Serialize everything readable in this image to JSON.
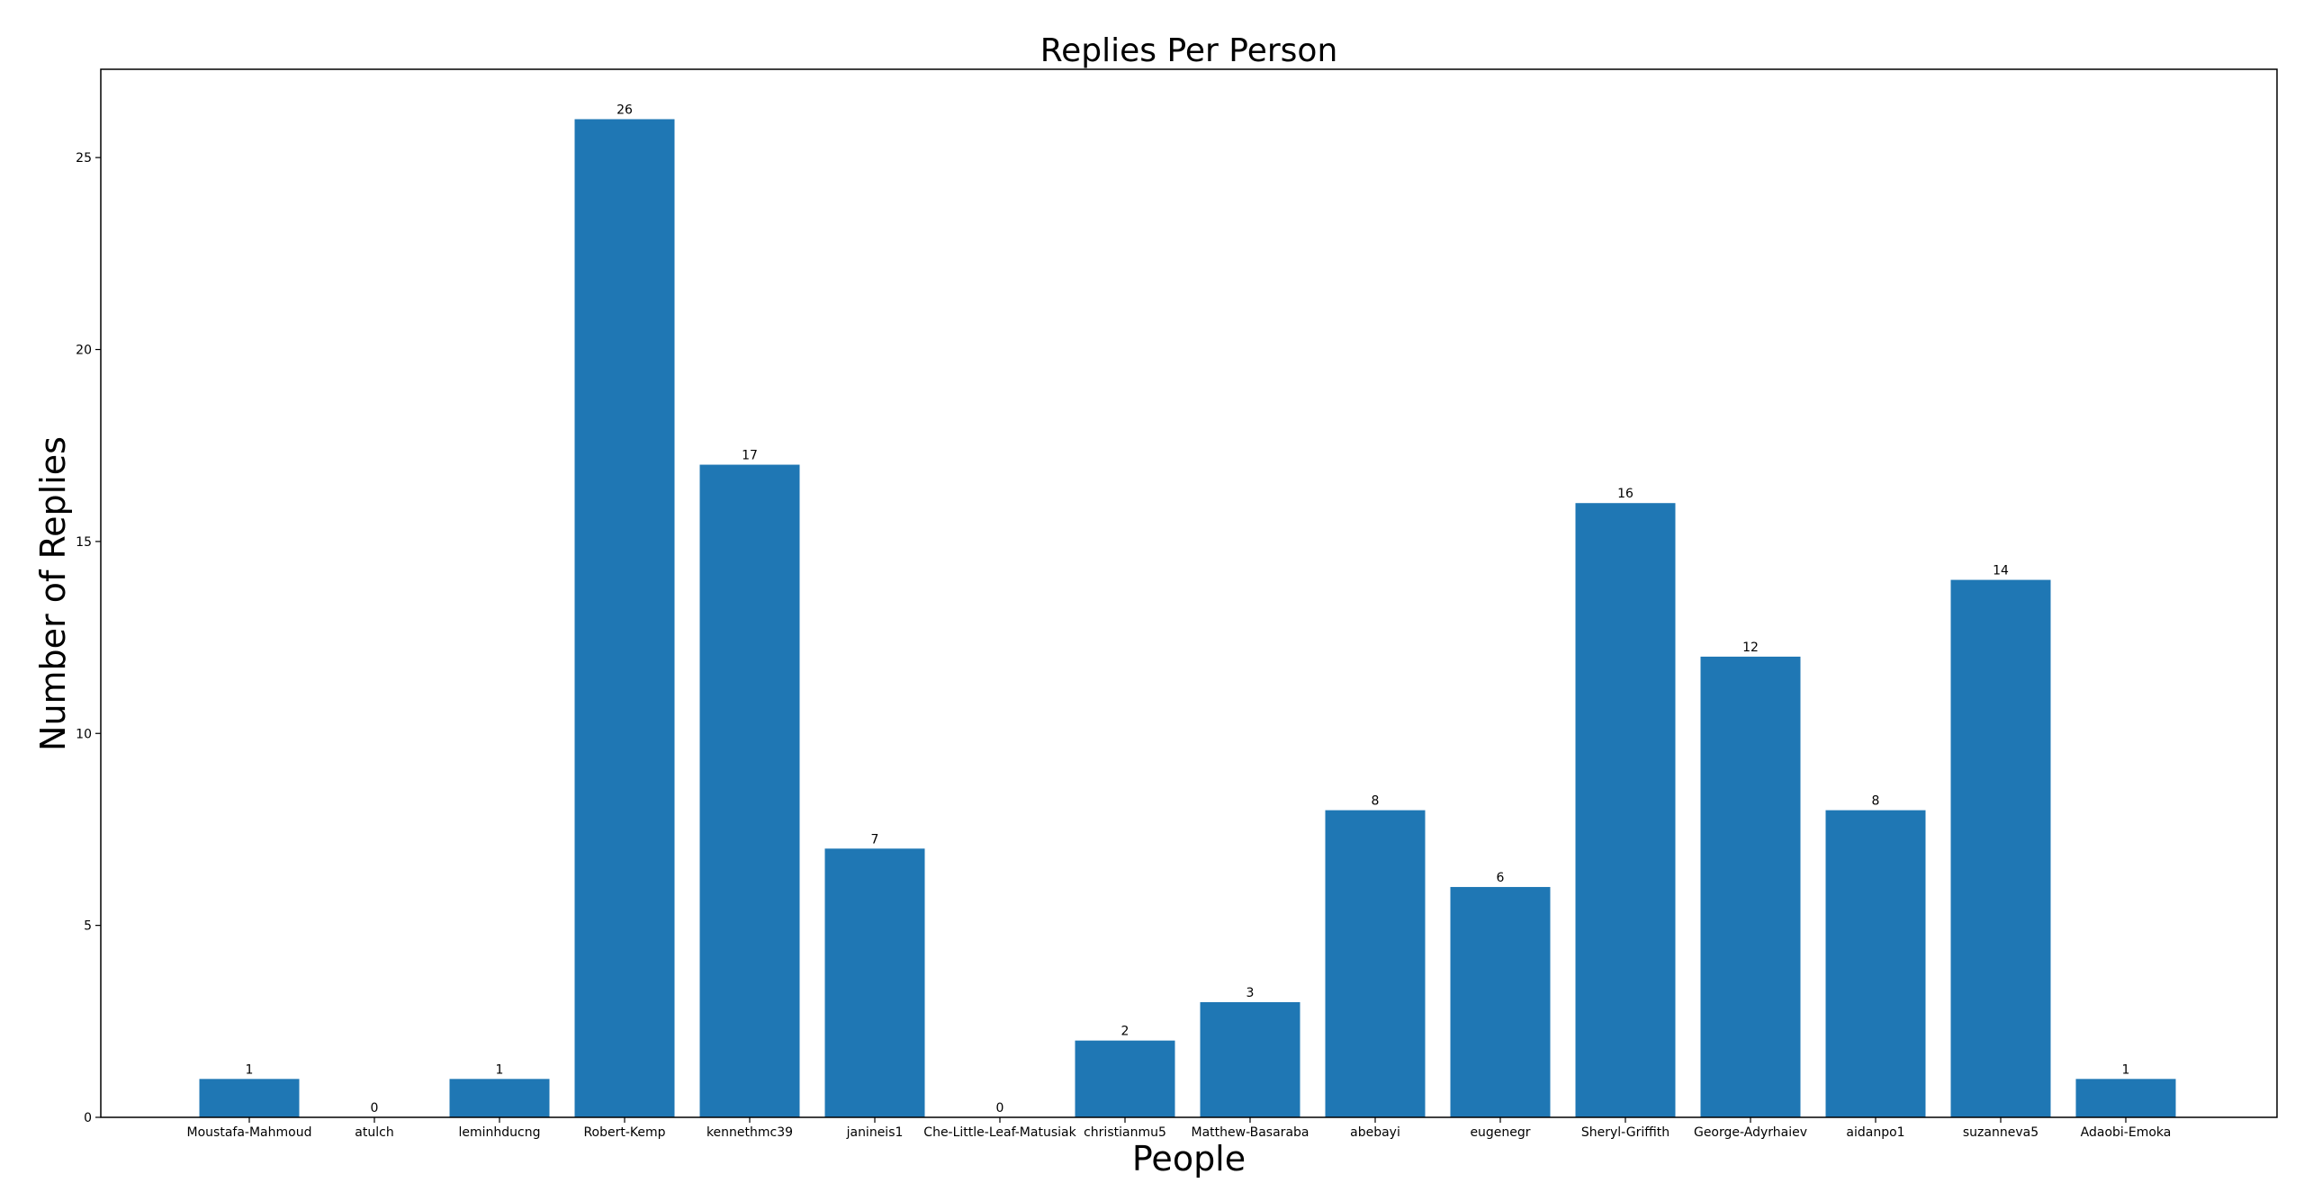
{
  "chart_data": {
    "type": "bar",
    "title": "Replies Per Person",
    "xlabel": "People",
    "ylabel": "Number of Replies",
    "categories": [
      "Moustafa-Mahmoud",
      "atulch",
      "leminhducng",
      "Robert-Kemp",
      "kennethmc39",
      "janineis1",
      "Che-Little-Leaf-Matusiak",
      "christianmu5",
      "Matthew-Basaraba",
      "abebayi",
      "eugenegr",
      "Sheryl-Griffith",
      "George-Adyrhaiev",
      "aidanpo1",
      "suzanneva5",
      "Adaobi-Emoka"
    ],
    "values": [
      1,
      0,
      1,
      26,
      17,
      7,
      0,
      2,
      3,
      8,
      6,
      16,
      12,
      8,
      14,
      1
    ],
    "data_labels": [
      "1",
      "0",
      "1",
      "26",
      "17",
      "7",
      "0",
      "2",
      "3",
      "8",
      "6",
      "16",
      "12",
      "8",
      "14",
      "1"
    ],
    "yticks": [
      0,
      5,
      10,
      15,
      20,
      25
    ],
    "ylim": [
      0,
      27.3
    ],
    "grid": false,
    "legend": "none",
    "bar_color": "#1f77b4"
  }
}
